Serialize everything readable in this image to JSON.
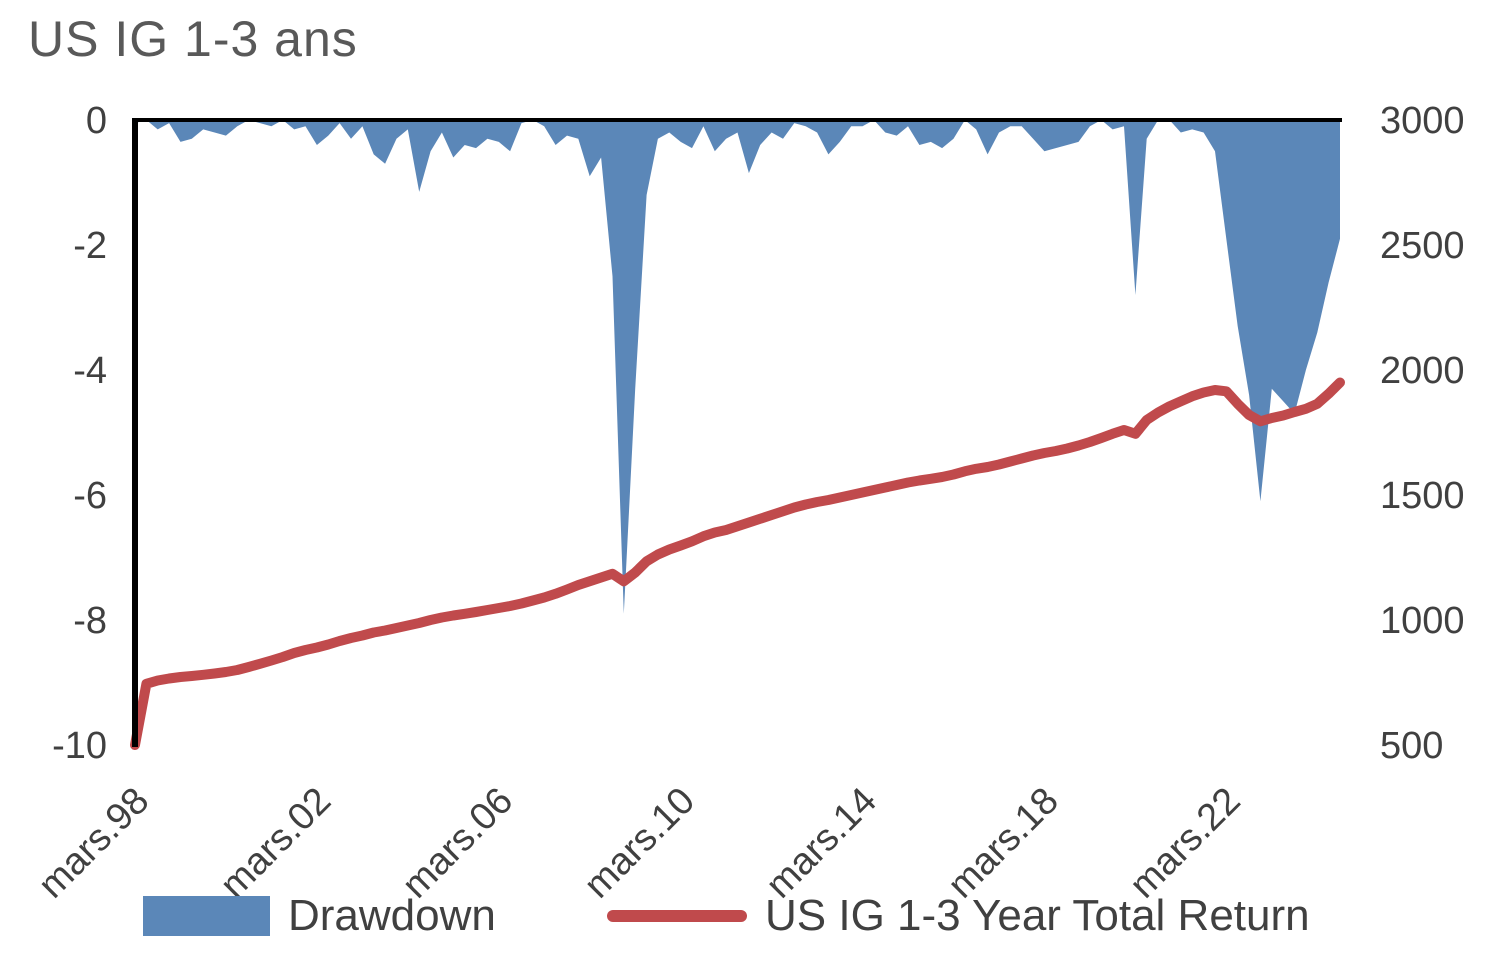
{
  "title": "US IG 1-3 ans",
  "colors": {
    "drawdown": "#5b87b8",
    "total_return": "#c04a4c",
    "axis": "#000000",
    "tick_text": "#404040",
    "title_text": "#595959"
  },
  "legend": {
    "drawdown": "Drawdown",
    "total_return": "US IG 1-3 Year Total Return"
  },
  "chart_data": {
    "type": "area+line",
    "title": "US IG 1-3 ans",
    "grid": false,
    "legend_position": "bottom",
    "x_range": [
      1998.25,
      2024.75
    ],
    "x_tick_labels": [
      "mars.98",
      "mars.02",
      "mars.06",
      "mars.10",
      "mars.14",
      "mars.18",
      "mars.22"
    ],
    "x_tick_positions": [
      1998.25,
      2002.25,
      2006.25,
      2010.25,
      2014.25,
      2018.25,
      2022.25
    ],
    "left_axis": {
      "series": "Drawdown",
      "ticks": [
        0,
        -2,
        -4,
        -6,
        -8,
        -10
      ],
      "range": [
        -10,
        0
      ]
    },
    "right_axis": {
      "series": "US IG 1-3 Year Total Return",
      "ticks": [
        3000,
        2500,
        2000,
        1500,
        1000,
        500
      ],
      "range": [
        500,
        3000
      ]
    },
    "x": [
      1998.25,
      1998.5,
      1998.75,
      1999.0,
      1999.25,
      1999.5,
      1999.75,
      2000.0,
      2000.25,
      2000.5,
      2000.75,
      2001.0,
      2001.25,
      2001.5,
      2001.75,
      2002.0,
      2002.25,
      2002.5,
      2002.75,
      2003.0,
      2003.25,
      2003.5,
      2003.75,
      2004.0,
      2004.25,
      2004.5,
      2004.75,
      2005.0,
      2005.25,
      2005.5,
      2005.75,
      2006.0,
      2006.25,
      2006.5,
      2006.75,
      2007.0,
      2007.25,
      2007.5,
      2007.75,
      2008.0,
      2008.25,
      2008.5,
      2008.75,
      2009.0,
      2009.25,
      2009.5,
      2009.75,
      2010.0,
      2010.25,
      2010.5,
      2010.75,
      2011.0,
      2011.25,
      2011.5,
      2011.75,
      2012.0,
      2012.25,
      2012.5,
      2012.75,
      2013.0,
      2013.25,
      2013.5,
      2013.75,
      2014.0,
      2014.25,
      2014.5,
      2014.75,
      2015.0,
      2015.25,
      2015.5,
      2015.75,
      2016.0,
      2016.25,
      2016.5,
      2016.75,
      2017.0,
      2017.25,
      2017.5,
      2017.75,
      2018.0,
      2018.25,
      2018.5,
      2018.75,
      2019.0,
      2019.25,
      2019.5,
      2019.75,
      2020.0,
      2020.25,
      2020.5,
      2020.75,
      2021.0,
      2021.25,
      2021.5,
      2021.75,
      2022.0,
      2022.25,
      2022.5,
      2022.75,
      2023.0,
      2023.25,
      2023.5,
      2023.75,
      2024.0,
      2024.25,
      2024.5,
      2024.75
    ],
    "series": [
      {
        "name": "Drawdown",
        "axis": "left",
        "type": "area",
        "color": "#5b87b8",
        "values": [
          -0.05,
          0,
          -0.15,
          -0.05,
          -0.35,
          -0.3,
          -0.15,
          -0.2,
          -0.25,
          -0.1,
          0,
          -0.05,
          -0.1,
          0,
          -0.15,
          -0.1,
          -0.4,
          -0.25,
          -0.05,
          -0.3,
          -0.1,
          -0.55,
          -0.7,
          -0.3,
          -0.15,
          -1.15,
          -0.5,
          -0.2,
          -0.6,
          -0.4,
          -0.45,
          -0.3,
          -0.35,
          -0.5,
          -0.05,
          0,
          -0.1,
          -0.4,
          -0.25,
          -0.3,
          -0.9,
          -0.6,
          -2.5,
          -7.9,
          -4.3,
          -1.2,
          -0.3,
          -0.2,
          -0.35,
          -0.45,
          -0.1,
          -0.5,
          -0.3,
          -0.2,
          -0.85,
          -0.4,
          -0.2,
          -0.3,
          -0.05,
          -0.1,
          -0.2,
          -0.55,
          -0.35,
          -0.1,
          -0.1,
          0,
          -0.2,
          -0.25,
          -0.1,
          -0.4,
          -0.35,
          -0.45,
          -0.3,
          0,
          -0.15,
          -0.55,
          -0.2,
          -0.1,
          -0.1,
          -0.3,
          -0.5,
          -0.45,
          -0.4,
          -0.35,
          -0.1,
          0,
          -0.15,
          -0.1,
          -2.8,
          -0.3,
          0,
          0,
          -0.2,
          -0.15,
          -0.2,
          -0.5,
          -1.9,
          -3.3,
          -4.4,
          -6.1,
          -4.3,
          -4.5,
          -4.7,
          -4.0,
          -3.4,
          -2.6,
          -1.9
        ]
      },
      {
        "name": "US IG 1-3 Year Total Return",
        "axis": "right",
        "type": "line",
        "color": "#c04a4c",
        "values": [
          500,
          745,
          758,
          766,
          772,
          776,
          781,
          786,
          792,
          800,
          812,
          825,
          838,
          852,
          868,
          880,
          890,
          902,
          916,
          928,
          938,
          950,
          958,
          968,
          978,
          988,
          1000,
          1010,
          1018,
          1025,
          1032,
          1040,
          1048,
          1056,
          1066,
          1078,
          1090,
          1105,
          1122,
          1140,
          1155,
          1170,
          1185,
          1155,
          1190,
          1235,
          1262,
          1282,
          1298,
          1315,
          1335,
          1350,
          1360,
          1375,
          1390,
          1405,
          1420,
          1435,
          1450,
          1462,
          1472,
          1480,
          1490,
          1500,
          1510,
          1520,
          1530,
          1540,
          1550,
          1558,
          1565,
          1572,
          1582,
          1595,
          1605,
          1612,
          1622,
          1634,
          1646,
          1658,
          1668,
          1676,
          1686,
          1698,
          1712,
          1728,
          1745,
          1760,
          1745,
          1800,
          1830,
          1855,
          1875,
          1895,
          1910,
          1920,
          1915,
          1865,
          1820,
          1795,
          1808,
          1818,
          1832,
          1845,
          1865,
          1905,
          1950
        ]
      }
    ]
  }
}
